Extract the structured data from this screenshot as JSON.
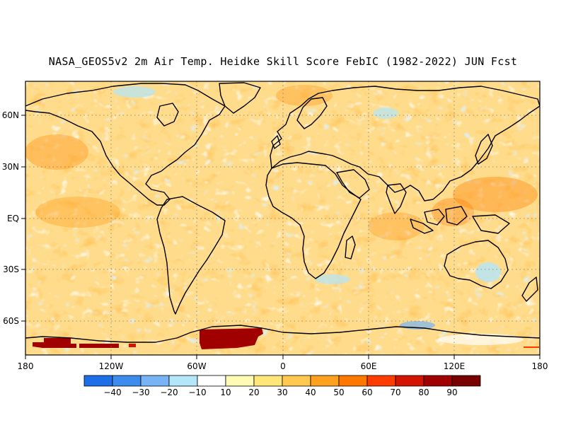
{
  "title": "NASA_GEOS5v2 2m Air Temp. Heidke Skill Score FebIC (1982-2022) JUN Fcst",
  "map": {
    "lon_ticks": [
      "180",
      "120W",
      "60W",
      "0",
      "60E",
      "120E",
      "180"
    ],
    "lat_ticks": [
      "60N",
      "30N",
      "EQ",
      "30S",
      "60S"
    ],
    "grid": "dotted"
  },
  "colorbar": {
    "labels": [
      "-40",
      "-30",
      "-20",
      "-10",
      "10",
      "20",
      "30",
      "40",
      "50",
      "60",
      "70",
      "80",
      "90"
    ],
    "colors": [
      "#1e6ee8",
      "#3c8cf0",
      "#78b4f5",
      "#b4e6fa",
      "#ffffff",
      "#fffab4",
      "#ffe678",
      "#ffc850",
      "#ffa01e",
      "#ff7800",
      "#ff3c00",
      "#d21400",
      "#a00000",
      "#780000"
    ]
  },
  "colors": {
    "land_outline": "#000000",
    "field_base": "#ffdc8c"
  }
}
